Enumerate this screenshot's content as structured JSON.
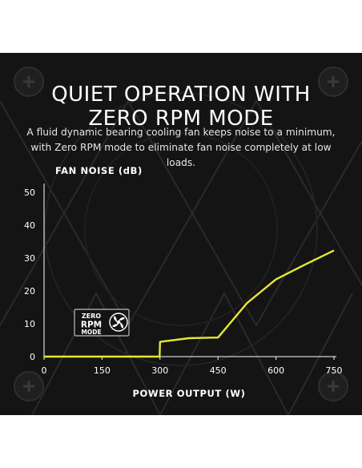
{
  "heading": {
    "line1": "QUIET OPERATION WITH",
    "line2": "ZERO RPM MODE"
  },
  "description": "A fluid dynamic bearing cooling fan keeps noise to a minimum, with Zero RPM mode to eliminate fan noise completely at low loads.",
  "badge": {
    "line1": "ZERO",
    "line2": "RPM",
    "line3": "MODE",
    "icon": "fan-icon"
  },
  "colors": {
    "background": "#141414",
    "line": "#e6e832",
    "text": "#ffffff"
  },
  "chart_data": {
    "type": "line",
    "ylabel": "FAN NOISE (dB)",
    "xlabel": "POWER OUTPUT (W)",
    "xlim": [
      0,
      750
    ],
    "ylim": [
      0,
      50
    ],
    "xticks": [
      0,
      150,
      300,
      450,
      600,
      750
    ],
    "yticks": [
      0,
      10,
      20,
      30,
      40,
      50
    ],
    "grid": false,
    "series": [
      {
        "x": [
          0,
          299,
          300,
          375,
          450,
          525,
          600,
          675,
          750
        ],
        "y": [
          0,
          0,
          4.5,
          5.6,
          5.8,
          16.3,
          23.5,
          28.0,
          32.3
        ]
      }
    ]
  }
}
